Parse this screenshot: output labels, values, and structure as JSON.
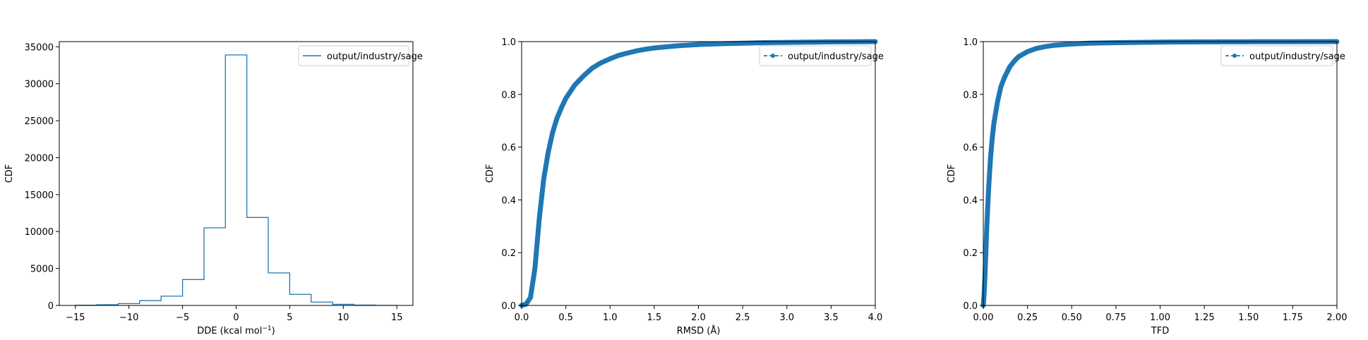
{
  "colors": {
    "series": "#1f77b4",
    "axes": "#000000",
    "legend_border": "#cccccc"
  },
  "chart_data": [
    {
      "type": "histogram",
      "xlabel": "DDE (kcal mol",
      "xlabel_sup": "−1",
      "xlabel_close": ")",
      "ylabel": "CDF",
      "xlim": [
        -16.5,
        16.5
      ],
      "ylim": [
        0,
        35700
      ],
      "x_ticks": [
        -15,
        -10,
        -5,
        0,
        5,
        10,
        15
      ],
      "x_tick_labels": [
        "−15",
        "−10",
        "−5",
        "0",
        "5",
        "10",
        "15"
      ],
      "y_ticks": [
        0,
        5000,
        10000,
        15000,
        20000,
        25000,
        30000,
        35000
      ],
      "y_tick_labels": [
        "0",
        "5000",
        "10000",
        "15000",
        "20000",
        "25000",
        "30000",
        "35000"
      ],
      "bin_edges": [
        -15,
        -13,
        -11,
        -9,
        -7,
        -5,
        -3,
        -1,
        1,
        3,
        5,
        7,
        9,
        11,
        13,
        15
      ],
      "counts": [
        30,
        90,
        250,
        650,
        1250,
        3500,
        10500,
        33900,
        11900,
        4400,
        1500,
        450,
        150,
        40,
        10
      ],
      "legend": {
        "placement": "top-right",
        "style": "line",
        "label": "output/industry/sage"
      }
    },
    {
      "type": "line",
      "xlabel": "RMSD (Å)",
      "ylabel": "CDF",
      "xlim": [
        0,
        4
      ],
      "ylim": [
        0,
        1
      ],
      "x_ticks": [
        0,
        0.5,
        1,
        1.5,
        2,
        2.5,
        3,
        3.5,
        4
      ],
      "x_tick_labels": [
        "0.0",
        "0.5",
        "1.0",
        "1.5",
        "2.0",
        "2.5",
        "3.0",
        "3.5",
        "4.0"
      ],
      "y_ticks": [
        0,
        0.2,
        0.4,
        0.6,
        0.8,
        1
      ],
      "y_tick_labels": [
        "0.0",
        "0.2",
        "0.4",
        "0.6",
        "0.8",
        "1.0"
      ],
      "series": [
        {
          "name": "output/industry/sage",
          "x": [
            0,
            0.05,
            0.1,
            0.15,
            0.2,
            0.25,
            0.3,
            0.35,
            0.4,
            0.45,
            0.5,
            0.6,
            0.7,
            0.8,
            0.9,
            1.0,
            1.1,
            1.2,
            1.3,
            1.4,
            1.5,
            1.75,
            2.0,
            2.25,
            2.5,
            2.75,
            3.0,
            3.25,
            3.5,
            3.75,
            4.0
          ],
          "y": [
            0,
            0.005,
            0.03,
            0.14,
            0.33,
            0.48,
            0.58,
            0.655,
            0.71,
            0.75,
            0.785,
            0.835,
            0.87,
            0.9,
            0.92,
            0.935,
            0.948,
            0.957,
            0.965,
            0.971,
            0.976,
            0.984,
            0.989,
            0.992,
            0.994,
            0.996,
            0.997,
            0.998,
            0.999,
            0.9995,
            1.0
          ]
        }
      ],
      "legend": {
        "placement": "top-right",
        "style": "dashed-marker",
        "label": "output/industry/sage"
      }
    },
    {
      "type": "line",
      "xlabel": "TFD",
      "ylabel": "CDF",
      "xlim": [
        0,
        2
      ],
      "ylim": [
        0,
        1
      ],
      "x_ticks": [
        0,
        0.25,
        0.5,
        0.75,
        1,
        1.25,
        1.5,
        1.75,
        2
      ],
      "x_tick_labels": [
        "0.00",
        "0.25",
        "0.50",
        "0.75",
        "1.00",
        "1.25",
        "1.50",
        "1.75",
        "2.00"
      ],
      "y_ticks": [
        0,
        0.2,
        0.4,
        0.6,
        0.8,
        1
      ],
      "y_tick_labels": [
        "0.0",
        "0.2",
        "0.4",
        "0.6",
        "0.8",
        "1.0"
      ],
      "series": [
        {
          "name": "output/industry/sage",
          "x": [
            0,
            0.005,
            0.01,
            0.02,
            0.03,
            0.04,
            0.05,
            0.06,
            0.08,
            0.1,
            0.12,
            0.15,
            0.18,
            0.2,
            0.25,
            0.3,
            0.35,
            0.4,
            0.5,
            0.6,
            0.75,
            1.0,
            1.25,
            1.5,
            1.75,
            2.0
          ],
          "y": [
            0,
            0.05,
            0.12,
            0.3,
            0.44,
            0.55,
            0.63,
            0.69,
            0.77,
            0.83,
            0.865,
            0.905,
            0.93,
            0.943,
            0.962,
            0.974,
            0.981,
            0.986,
            0.991,
            0.994,
            0.996,
            0.998,
            0.999,
            0.9995,
            0.9998,
            1.0
          ]
        }
      ],
      "legend": {
        "placement": "top-right",
        "style": "dashed-marker",
        "label": "output/industry/sage"
      }
    }
  ]
}
